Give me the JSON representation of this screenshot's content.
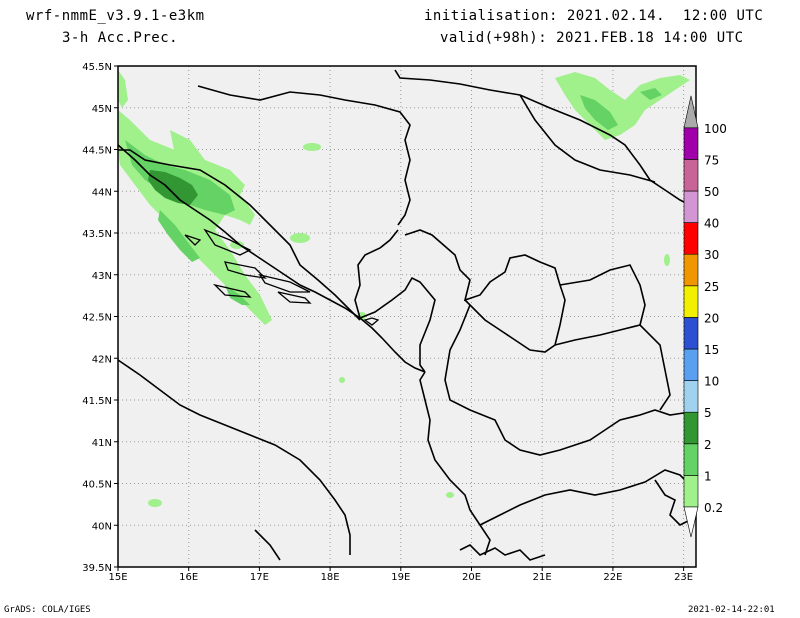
{
  "header": {
    "model": "wrf-nmmE_v3.9.1-e3km",
    "field": "3-h Acc.Prec.",
    "initialisation": "initialisation: 2021.02.14.  12:00 UTC",
    "valid": "valid(+98h): 2021.FEB.18 14:00 UTC"
  },
  "footer": {
    "credit": "GrADS: COLA/IGES",
    "timestamp": "2021-02-14-22:01"
  },
  "map": {
    "lat_labels": [
      "45.5N",
      "45N",
      "44.5N",
      "44N",
      "43.5N",
      "43N",
      "42.5N",
      "42N",
      "41.5N",
      "41N",
      "40.5N",
      "40N",
      "39.5N"
    ],
    "lon_labels": [
      "15E",
      "16E",
      "17E",
      "18E",
      "19E",
      "20E",
      "21E",
      "22E",
      "23E"
    ]
  },
  "colorbar": {
    "levels": [
      "0.2",
      "1",
      "2",
      "5",
      "10",
      "15",
      "20",
      "25",
      "30",
      "40",
      "50",
      "75",
      "100"
    ],
    "colors": [
      "#a0f08c",
      "#64d264",
      "#329632",
      "#a0d2f0",
      "#5aa0f0",
      "#2d50d2",
      "#f0f000",
      "#f09600",
      "#ff0000",
      "#d296d2",
      "#c86496",
      "#a000aa",
      "#aaaaaa"
    ]
  },
  "precip_colors": {
    "light": "#a0f08c",
    "moderate": "#64d264",
    "heavy": "#329632"
  }
}
